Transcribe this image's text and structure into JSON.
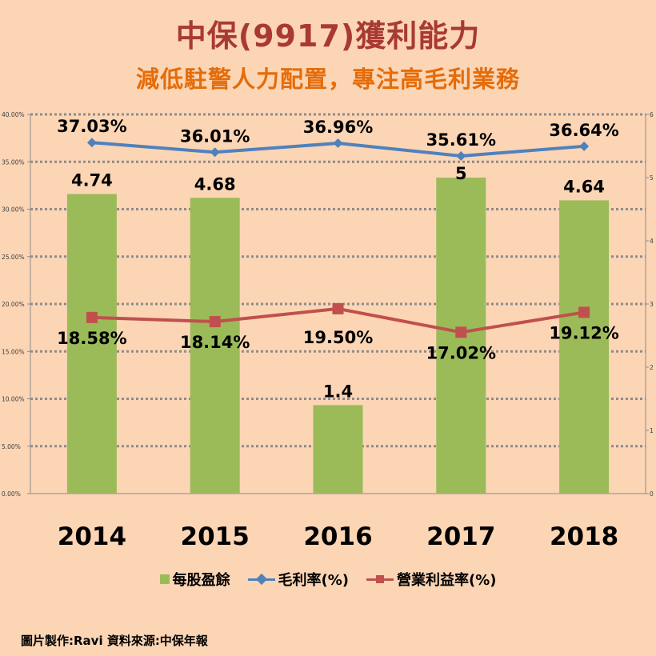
{
  "header": {
    "title": "中保(9917)獲利能力",
    "subtitle": "減低駐警人力配置，專注高毛利業務"
  },
  "footer": {
    "credit": "圖片製作:Ravi  資料來源:中保年報"
  },
  "colors": {
    "background": "#fcd5b5",
    "eps_bar": "#9bbb59",
    "gross_margin": "#4f81bd",
    "operating_margin": "#c0504d"
  },
  "chart_data": {
    "type": "bar",
    "categories": [
      "2014",
      "2015",
      "2016",
      "2017",
      "2018"
    ],
    "series": [
      {
        "name": "每股盈餘",
        "type": "bar",
        "axis": "right",
        "values": [
          4.74,
          4.68,
          1.4,
          5,
          4.64
        ],
        "labels": [
          "4.74",
          "4.68",
          "1.4",
          "5",
          "4.64"
        ]
      },
      {
        "name": "毛利率(%)",
        "type": "line",
        "axis": "left",
        "marker": "diamond",
        "values": [
          37.03,
          36.01,
          36.96,
          35.61,
          36.64
        ],
        "labels": [
          "37.03%",
          "36.01%",
          "36.96%",
          "35.61%",
          "36.64%"
        ]
      },
      {
        "name": "營業利益率(%)",
        "type": "line",
        "axis": "left",
        "marker": "square",
        "values": [
          18.58,
          18.14,
          19.5,
          17.02,
          19.12
        ],
        "labels": [
          "18.58%",
          "18.14%",
          "19.50%",
          "17.02%",
          "19.12%"
        ]
      }
    ],
    "y_left": {
      "range": [
        0,
        40
      ],
      "ticks": [
        "0.00%",
        "5.00%",
        "10.00%",
        "15.00%",
        "20.00%",
        "25.00%",
        "30.00%",
        "35.00%",
        "40.00%"
      ]
    },
    "y_right": {
      "range": [
        0,
        6
      ],
      "ticks": [
        "0",
        "1",
        "2",
        "3",
        "4",
        "5",
        "6"
      ]
    },
    "grid": true,
    "legend_position": "bottom"
  }
}
